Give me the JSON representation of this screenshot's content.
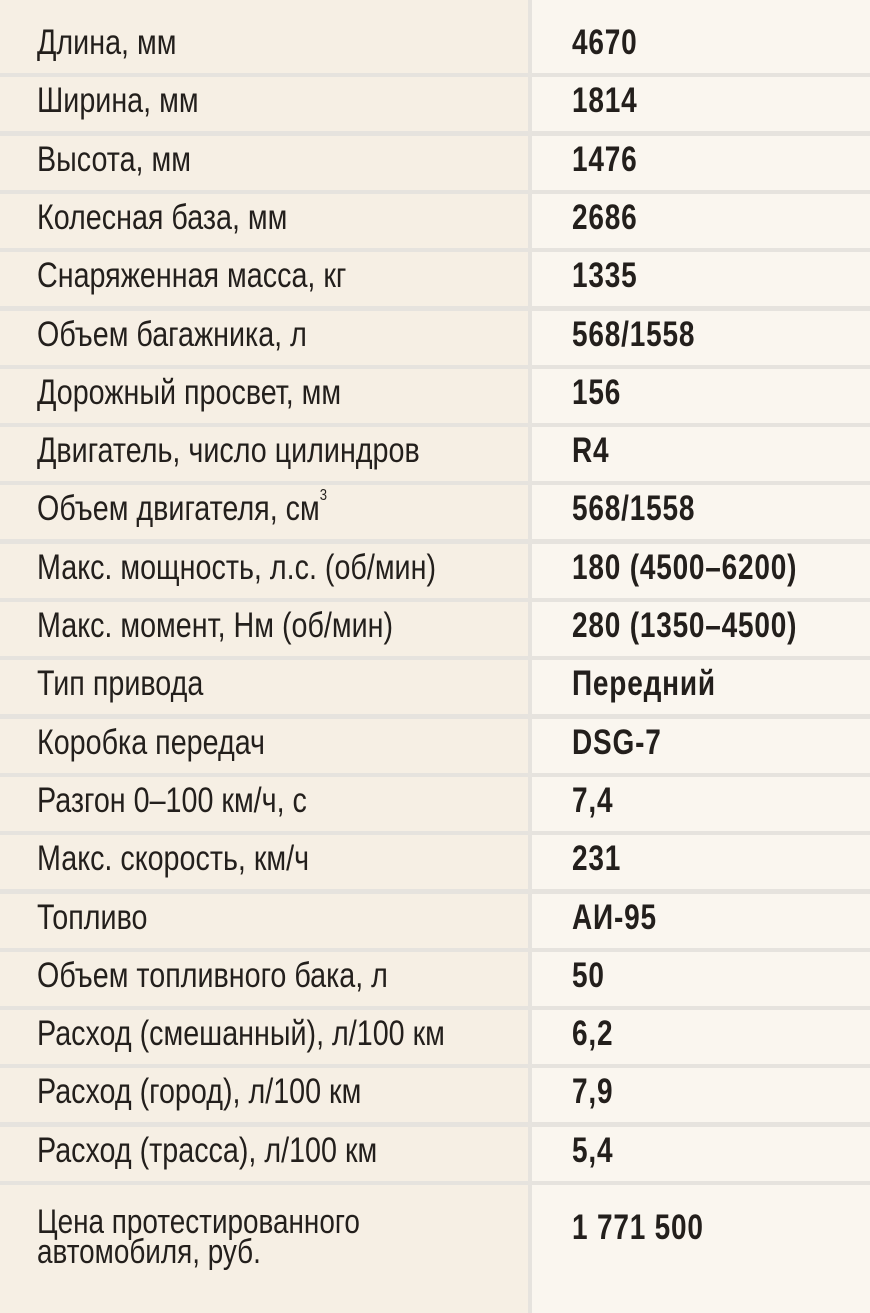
{
  "rows": [
    {
      "label": "Длина, мм",
      "value": "4670"
    },
    {
      "label": "Ширина, мм",
      "value": "1814"
    },
    {
      "label": "Высота, мм",
      "value": "1476"
    },
    {
      "label": "Колесная база, мм",
      "value": "2686"
    },
    {
      "label": "Снаряженная масса, кг",
      "value": "1335"
    },
    {
      "label": "Объем багажника, л",
      "value": "568/1558"
    },
    {
      "label": "Дорожный просвет, мм",
      "value": "156"
    },
    {
      "label": "Двигатель, число цилиндров",
      "value": "R4"
    },
    {
      "label": "Объем двигателя, см",
      "sup": "3",
      "value": "568/1558"
    },
    {
      "label": "Макс. мощность, л.с. (об/мин)",
      "value": "180 (4500–6200)"
    },
    {
      "label": "Макс. момент, Нм (об/мин)",
      "value": "280 (1350–4500)"
    },
    {
      "label": "Тип привода",
      "value": "Передний"
    },
    {
      "label": "Коробка передач",
      "value": "DSG-7"
    },
    {
      "label": "Разгон 0–100 км/ч, с",
      "value": "7,4"
    },
    {
      "label": "Макс. скорость, км/ч",
      "value": "231"
    },
    {
      "label": "Топливо",
      "value": "АИ-95"
    },
    {
      "label": "Объем топливного бака, л",
      "value": "50"
    },
    {
      "label": "Расход (смешанный), л/100 км",
      "value": "6,2"
    },
    {
      "label": "Расход (город), л/100 км",
      "value": "7,9"
    },
    {
      "label": "Расход (трасса), л/100 км",
      "value": "5,4"
    }
  ],
  "price": {
    "label": "Цена протестированного автомобиля, руб.",
    "value": "1 771 500"
  },
  "colors": {
    "label_bg": "#f6efe4",
    "value_bg": "#faf6ef",
    "grid": "#e6e3de",
    "text": "#231f1c"
  }
}
